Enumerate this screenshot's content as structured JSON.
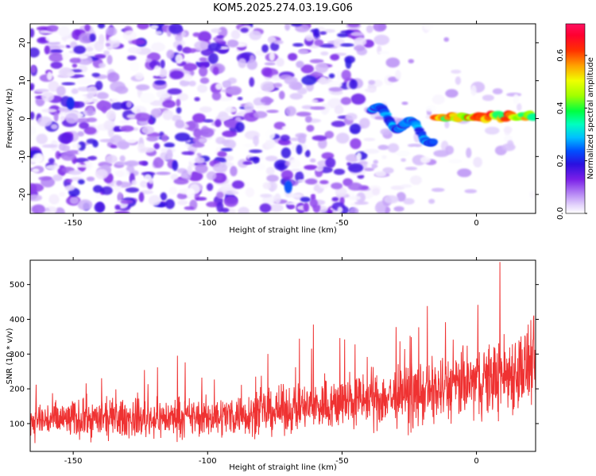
{
  "title": "KOM5.2025.274.03.19.G06",
  "chart_data": [
    {
      "type": "heatmap",
      "name": "spectrogram",
      "xlabel": "Height of straight line (km)",
      "ylabel": "Frequency (Hz)",
      "xlim": [
        -166,
        22
      ],
      "ylim": [
        -25,
        25
      ],
      "xticks": [
        -150,
        -100,
        -50,
        0
      ],
      "xtick_labels": [
        "-150",
        "-100",
        "-50",
        "0"
      ],
      "yticks": [
        -20,
        -10,
        0,
        10,
        20
      ],
      "ytick_labels": [
        "-20",
        "-10",
        "0",
        "10",
        "20"
      ],
      "grid": false,
      "colorbar": {
        "label": "Normalized spectral amplitude",
        "range": [
          0.0,
          0.72
        ],
        "ticks": [
          0.0,
          0.2,
          0.4,
          0.6
        ],
        "tick_labels": [
          "0.0",
          "0.2",
          "0.4",
          "0.6"
        ],
        "colormap": [
          "#ffffff",
          "#c8a8f8",
          "#7a1fe8",
          "#2a10e0",
          "#0060ff",
          "#00d8ff",
          "#00ff90",
          "#60ff00",
          "#f0ff00",
          "#ff9000",
          "#ff1000",
          "#ff1050"
        ]
      },
      "background_noise_amplitude": 0.2,
      "features": [
        {
          "description": "strong signal band near 0 Hz",
          "x_range": [
            -15,
            21
          ],
          "frequency_hz": 0.5,
          "amplitude": 0.68
        },
        {
          "description": "moderate signal descending",
          "x_range": [
            -39,
            -16
          ],
          "frequency_hz_start": 2,
          "frequency_hz_end": -5,
          "amplitude": 0.32
        },
        {
          "description": "isolated blob",
          "x": -70,
          "frequency_hz": -18,
          "amplitude": 0.25
        },
        {
          "description": "isolated blob",
          "x": -151,
          "frequency_hz": 4,
          "amplitude": 0.22
        }
      ]
    },
    {
      "type": "line",
      "name": "snr",
      "xlabel": "Height of straight line (km)",
      "ylabel": "SNR (10 * v/v)",
      "xlim": [
        -166,
        22
      ],
      "ylim": [
        20,
        570
      ],
      "xticks": [
        -150,
        -100,
        -50,
        0
      ],
      "xtick_labels": [
        "-150",
        "-100",
        "-50",
        "0"
      ],
      "yticks": [
        100,
        200,
        300,
        400,
        500
      ],
      "ytick_labels": [
        "100",
        "200",
        "300",
        "400",
        "500"
      ],
      "grid": false,
      "color": "#ef3232",
      "series": [
        {
          "name": "SNR",
          "trend_points_x": [
            -166,
            -100,
            -75,
            -45,
            -20,
            0,
            10,
            22
          ],
          "trend_points_mean": [
            110,
            118,
            135,
            165,
            185,
            220,
            240,
            270
          ],
          "trend_points_spread": [
            60,
            60,
            70,
            85,
            100,
            110,
            125,
            140
          ],
          "max_value": 565,
          "min_value": 40
        }
      ]
    }
  ]
}
